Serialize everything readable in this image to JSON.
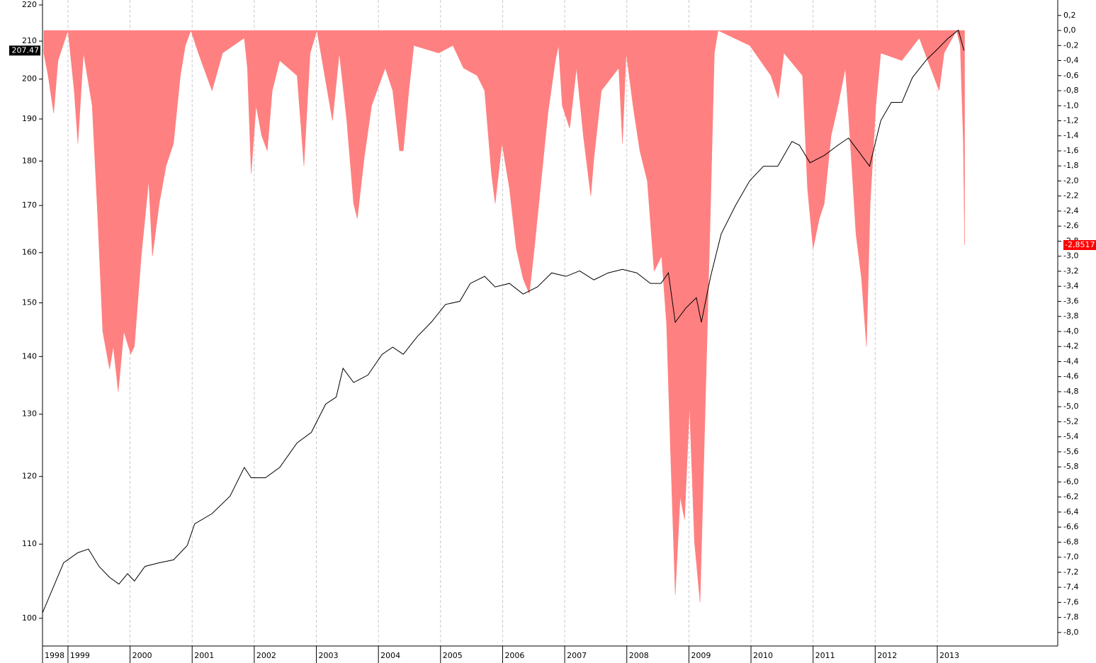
{
  "chart_data": {
    "type": "line",
    "ylog": true,
    "grid": true,
    "xlim": [
      1998.59,
      2014.94
    ],
    "xticks": [
      {
        "value": 1998.59,
        "label": "1998"
      },
      1999,
      2000,
      2001,
      2002,
      2003,
      2004,
      2005,
      2006,
      2007,
      2008,
      2009,
      2010,
      2011,
      2012,
      2013
    ],
    "ylim": [
      96.5,
      221.4
    ],
    "yticks": [
      100,
      110,
      120,
      130,
      140,
      150,
      160,
      170,
      180,
      190,
      200,
      210,
      220
    ],
    "y2lim": [
      -8.18,
      0.405
    ],
    "y2ticks": [
      {
        "value": 0.2,
        "label": "0,2"
      },
      {
        "value": 0,
        "label": "0,0"
      },
      {
        "value": -0.2,
        "label": "-0,2"
      },
      {
        "value": -0.4,
        "label": "-0,4"
      },
      {
        "value": -0.6,
        "label": "-0,6"
      },
      {
        "value": -0.8,
        "label": "-0,8"
      },
      {
        "value": -1.0,
        "label": "-1,0"
      },
      {
        "value": -1.2,
        "label": "-1,2"
      },
      {
        "value": -1.4,
        "label": "-1,4"
      },
      {
        "value": -1.6,
        "label": "-1,6"
      },
      {
        "value": -1.8,
        "label": "-1,8"
      },
      {
        "value": -2.0,
        "label": "-2,0"
      },
      {
        "value": -2.2,
        "label": "-2,2"
      },
      {
        "value": -2.4,
        "label": "-2,4"
      },
      {
        "value": -2.6,
        "label": "-2,6"
      },
      {
        "value": -2.8,
        "label": "-2,8"
      },
      {
        "value": -3.0,
        "label": "-3,0"
      },
      {
        "value": -3.2,
        "label": "-3,2"
      },
      {
        "value": -3.4,
        "label": "-3,4"
      },
      {
        "value": -3.6,
        "label": "-3,6"
      },
      {
        "value": -3.8,
        "label": "-3,8"
      },
      {
        "value": -4.0,
        "label": "-4,0"
      },
      {
        "value": -4.2,
        "label": "-4,2"
      },
      {
        "value": -4.4,
        "label": "-4,4"
      },
      {
        "value": -4.6,
        "label": "-4,6"
      },
      {
        "value": -4.8,
        "label": "-4,8"
      },
      {
        "value": -5.0,
        "label": "-5,0"
      },
      {
        "value": -5.2,
        "label": "-5,2"
      },
      {
        "value": -5.4,
        "label": "-5,4"
      },
      {
        "value": -5.6,
        "label": "-5,6"
      },
      {
        "value": -5.8,
        "label": "-5,8"
      },
      {
        "value": -6.0,
        "label": "-6,0"
      },
      {
        "value": -6.2,
        "label": "-6,2"
      },
      {
        "value": -6.4,
        "label": "-6,4"
      },
      {
        "value": -6.6,
        "label": "-6,6"
      },
      {
        "value": -6.8,
        "label": "-6,8"
      },
      {
        "value": -7.0,
        "label": "-7,0"
      },
      {
        "value": -7.2,
        "label": "-7,2"
      },
      {
        "value": -7.4,
        "label": "-7,4"
      },
      {
        "value": -7.6,
        "label": "-7,6"
      },
      {
        "value": -7.8,
        "label": "-7,8"
      },
      {
        "value": -8.0,
        "label": "-8,0"
      }
    ],
    "series": [
      {
        "type": "area",
        "axis": "y2",
        "color": "#ff8080",
        "x": [
          1998.61,
          1998.68,
          1998.77,
          1998.84,
          1999.0,
          1999.1,
          1999.16,
          1999.25,
          1999.39,
          1999.48,
          1999.56,
          1999.67,
          1999.73,
          1999.81,
          1999.9,
          2000.01,
          2000.07,
          2000.18,
          2000.3,
          2000.36,
          2000.47,
          2000.58,
          2000.7,
          2000.81,
          2000.89,
          2000.98,
          2001.1,
          2001.32,
          2001.49,
          2001.84,
          2001.89,
          2001.95,
          2002.03,
          2002.12,
          2002.21,
          2002.29,
          2002.41,
          2002.69,
          2002.8,
          2002.9,
          2003.01,
          2003.26,
          2003.37,
          2003.49,
          2003.6,
          2003.66,
          2003.77,
          2003.89,
          2004.11,
          2004.23,
          2004.34,
          2004.4,
          2004.49,
          2004.57,
          2004.97,
          2005.2,
          2005.37,
          2005.59,
          2005.71,
          2005.82,
          2005.88,
          2005.99,
          2006.11,
          2006.22,
          2006.33,
          2006.43,
          2006.51,
          2006.62,
          2006.73,
          2006.85,
          2006.9,
          2006.96,
          2007.08,
          2007.19,
          2007.3,
          2007.42,
          2007.47,
          2007.59,
          2007.87,
          2007.93,
          2007.99,
          2008.1,
          2008.21,
          2008.33,
          2008.44,
          2008.56,
          2008.64,
          2008.7,
          2008.78,
          2008.86,
          2008.93,
          2009.01,
          2009.09,
          2009.18,
          2009.27,
          2009.35,
          2009.41,
          2009.47,
          2009.98,
          2010.32,
          2010.44,
          2010.53,
          2010.83,
          2010.91,
          2011.0,
          2011.1,
          2011.18,
          2011.29,
          2011.4,
          2011.52,
          2011.6,
          2011.69,
          2011.78,
          2011.86,
          2011.92,
          2012.01,
          2012.09,
          2012.43,
          2012.71,
          2013.03,
          2013.11,
          2013.31,
          2013.37,
          2013.42,
          2013.44
        ],
        "values": [
          -0.3,
          -0.6,
          -1.1,
          -0.4,
          0,
          -0.8,
          -1.5,
          -0.3,
          -1.0,
          -2.5,
          -4.0,
          -4.5,
          -4.2,
          -4.8,
          -4.0,
          -4.3,
          -4.2,
          -3.0,
          -2.0,
          -3.0,
          -2.3,
          -1.8,
          -1.5,
          -0.6,
          -0.2,
          0,
          -0.3,
          -0.8,
          -0.3,
          -0.1,
          -0.5,
          -1.9,
          -1.0,
          -1.4,
          -1.6,
          -0.8,
          -0.4,
          -0.6,
          -1.8,
          -0.3,
          0,
          -1.2,
          -0.3,
          -1.2,
          -2.3,
          -2.5,
          -1.7,
          -1.0,
          -0.5,
          -0.8,
          -1.6,
          -1.6,
          -0.8,
          -0.2,
          -0.3,
          -0.2,
          -0.5,
          -0.6,
          -0.8,
          -1.9,
          -2.3,
          -1.5,
          -2.1,
          -2.9,
          -3.3,
          -3.5,
          -2.9,
          -2.0,
          -1.1,
          -0.4,
          -0.2,
          -1.0,
          -1.3,
          -0.5,
          -1.4,
          -2.2,
          -1.7,
          -0.8,
          -0.5,
          -1.5,
          -0.3,
          -1.0,
          -1.6,
          -2.0,
          -3.2,
          -3.0,
          -3.9,
          -5.5,
          -7.5,
          -6.2,
          -6.5,
          -5.0,
          -6.8,
          -7.6,
          -4.8,
          -2.3,
          -0.3,
          0,
          -0.2,
          -0.6,
          -0.9,
          -0.3,
          -0.6,
          -2.1,
          -2.9,
          -2.5,
          -2.3,
          -1.4,
          -1.0,
          -0.5,
          -1.5,
          -2.7,
          -3.3,
          -4.2,
          -2.3,
          -1.0,
          -0.3,
          -0.4,
          -0.1,
          -0.8,
          -0.3,
          0,
          -0.2,
          -1.5,
          -2.85
        ]
      },
      {
        "type": "line",
        "color": "#000000",
        "x": [
          1998.59,
          1998.76,
          1998.93,
          1999.16,
          1999.33,
          1999.5,
          1999.67,
          1999.82,
          1999.96,
          2000.07,
          2000.24,
          2000.47,
          2000.7,
          2000.92,
          2001.04,
          2001.32,
          2001.61,
          2001.84,
          2001.95,
          2002.18,
          2002.41,
          2002.69,
          2002.92,
          2003.15,
          2003.32,
          2003.43,
          2003.6,
          2003.83,
          2004.06,
          2004.23,
          2004.4,
          2004.63,
          2004.85,
          2005.08,
          2005.31,
          2005.48,
          2005.71,
          2005.88,
          2006.11,
          2006.33,
          2006.56,
          2006.79,
          2007.02,
          2007.24,
          2007.47,
          2007.7,
          2007.93,
          2008.16,
          2008.38,
          2008.55,
          2008.67,
          2008.78,
          2008.95,
          2009.12,
          2009.2,
          2009.35,
          2009.52,
          2009.75,
          2009.98,
          2010.2,
          2010.43,
          2010.66,
          2010.78,
          2010.95,
          2011.18,
          2011.4,
          2011.57,
          2011.74,
          2011.91,
          2012.09,
          2012.26,
          2012.43,
          2012.6,
          2012.83,
          2013.0,
          2013.17,
          2013.34,
          2013.43
        ],
        "values": [
          100.7,
          104.0,
          107.4,
          108.8,
          109.3,
          106.9,
          105.4,
          104.5,
          105.9,
          104.9,
          106.9,
          107.4,
          107.8,
          109.8,
          112.9,
          114.4,
          117.0,
          121.4,
          119.8,
          119.8,
          121.4,
          125.3,
          127.0,
          131.7,
          132.9,
          137.9,
          135.4,
          136.7,
          140.4,
          141.7,
          140.4,
          143.7,
          146.3,
          149.7,
          150.3,
          153.8,
          155.2,
          153.1,
          153.8,
          151.7,
          153.1,
          155.9,
          155.2,
          156.3,
          154.5,
          155.9,
          156.6,
          155.9,
          153.8,
          153.8,
          155.9,
          146.3,
          149.0,
          151.0,
          146.3,
          155.2,
          163.9,
          170.0,
          175.5,
          178.8,
          178.8,
          184.6,
          183.7,
          179.6,
          181.3,
          183.7,
          185.4,
          182.1,
          178.8,
          189.6,
          194.1,
          194.1,
          200.4,
          205.1,
          207.8,
          210.7,
          213.0,
          207.47
        ]
      }
    ],
    "value_badges": [
      {
        "value": 207.47,
        "color": "#000000"
      },
      {
        "value": -2.8517,
        "label": "-2,8517",
        "axis": "y2",
        "color": "#ff0000"
      }
    ]
  }
}
